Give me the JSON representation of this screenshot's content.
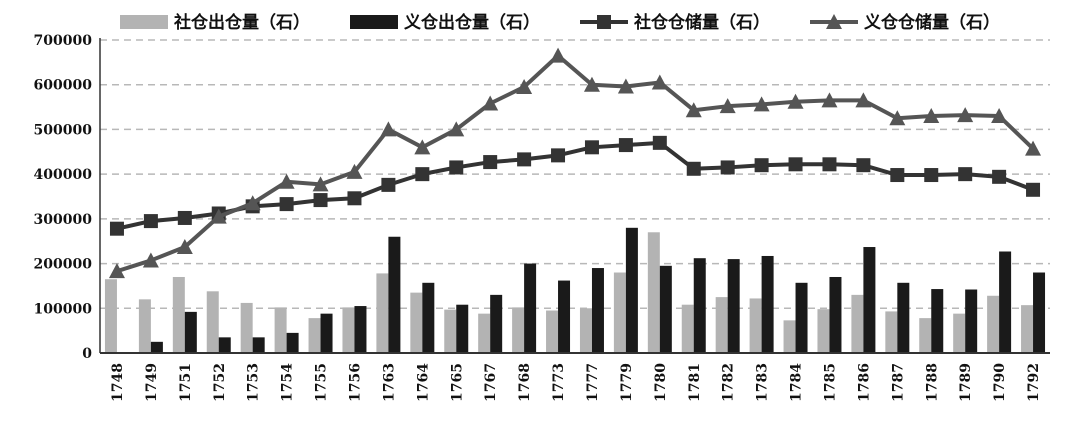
{
  "chart_data": {
    "type": "bar",
    "categories": [
      "1748",
      "1749",
      "1751",
      "1752",
      "1753",
      "1754",
      "1755",
      "1756",
      "1763",
      "1764",
      "1765",
      "1767",
      "1768",
      "1773",
      "1777",
      "1779",
      "1780",
      "1781",
      "1782",
      "1783",
      "1784",
      "1785",
      "1786",
      "1787",
      "1788",
      "1789",
      "1790",
      "1792"
    ],
    "ylim": [
      0,
      700000
    ],
    "yticks": [
      "0",
      "100000",
      "200000",
      "300000",
      "400000",
      "500000",
      "600000",
      "700000"
    ],
    "grid": true,
    "legend_position": "top",
    "series": [
      {
        "name": "社仓出仓量（石）",
        "kind": "bar",
        "color": "#b3b3b3",
        "values": [
          165000,
          120000,
          170000,
          138000,
          112000,
          102000,
          78000,
          102000,
          178000,
          135000,
          97000,
          88000,
          102000,
          95000,
          100000,
          180000,
          270000,
          108000,
          125000,
          122000,
          73000,
          98000,
          130000,
          93000,
          78000,
          88000,
          128000,
          107000
        ]
      },
      {
        "name": "义仓出仓量（石）",
        "kind": "bar",
        "color": "#1a1a1a",
        "values": [
          0,
          25000,
          92000,
          35000,
          35000,
          45000,
          88000,
          105000,
          260000,
          157000,
          108000,
          130000,
          200000,
          162000,
          190000,
          280000,
          195000,
          212000,
          210000,
          217000,
          157000,
          170000,
          237000,
          157000,
          143000,
          142000,
          227000,
          180000
        ]
      },
      {
        "name": "社仓仓储量（石）",
        "kind": "line",
        "marker": "square",
        "color": "#333333",
        "values": [
          278000,
          295000,
          302000,
          312000,
          328000,
          333000,
          342000,
          346000,
          376000,
          400000,
          415000,
          427000,
          433000,
          442000,
          460000,
          465000,
          470000,
          412000,
          415000,
          420000,
          422000,
          422000,
          420000,
          398000,
          398000,
          400000,
          394000,
          365000
        ]
      },
      {
        "name": "义仓仓储量（石）",
        "kind": "line",
        "marker": "triangle",
        "color": "#555555",
        "values": [
          183000,
          207000,
          237000,
          305000,
          335000,
          383000,
          377000,
          405000,
          500000,
          460000,
          500000,
          558000,
          595000,
          665000,
          600000,
          596000,
          605000,
          543000,
          552000,
          556000,
          562000,
          565000,
          565000,
          525000,
          530000,
          532000,
          530000,
          457000
        ]
      }
    ]
  }
}
